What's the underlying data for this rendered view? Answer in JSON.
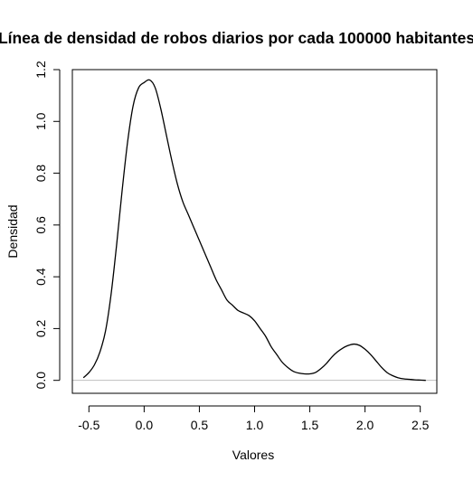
{
  "chart_data": {
    "type": "line",
    "title": "Línea de densidad de robos diarios por cada 100000 habitantes",
    "xlabel": "Valores",
    "ylabel": "Densidad",
    "xlim": [
      -0.65,
      2.65
    ],
    "ylim": [
      -0.05,
      1.2
    ],
    "x_ticks": [
      -0.5,
      0.0,
      0.5,
      1.0,
      1.5,
      2.0,
      2.5
    ],
    "x_tick_labels": [
      "-0.5",
      "0.0",
      "0.5",
      "1.0",
      "1.5",
      "2.0",
      "2.5"
    ],
    "y_ticks": [
      0.0,
      0.2,
      0.4,
      0.6,
      0.8,
      1.0,
      1.2
    ],
    "y_tick_labels": [
      "0.0",
      "0.2",
      "0.4",
      "0.6",
      "0.8",
      "1.0",
      "1.2"
    ],
    "grid": false,
    "baseline_y": 0,
    "colors": {
      "line": "#000000",
      "baseline": "#bebebe",
      "frame": "#000000"
    },
    "series": [
      {
        "x": [
          -0.55,
          -0.5,
          -0.45,
          -0.4,
          -0.35,
          -0.3,
          -0.25,
          -0.2,
          -0.15,
          -0.1,
          -0.05,
          0.0,
          0.05,
          0.1,
          0.15,
          0.2,
          0.25,
          0.3,
          0.35,
          0.4,
          0.45,
          0.5,
          0.55,
          0.6,
          0.65,
          0.7,
          0.75,
          0.8,
          0.85,
          0.9,
          0.95,
          1.0,
          1.05,
          1.1,
          1.15,
          1.2,
          1.25,
          1.3,
          1.35,
          1.4,
          1.45,
          1.5,
          1.55,
          1.6,
          1.65,
          1.7,
          1.75,
          1.8,
          1.85,
          1.9,
          1.95,
          2.0,
          2.05,
          2.1,
          2.15,
          2.2,
          2.25,
          2.3,
          2.35,
          2.4,
          2.45,
          2.5,
          2.55
        ],
        "y": [
          0.01,
          0.03,
          0.06,
          0.11,
          0.19,
          0.33,
          0.52,
          0.73,
          0.92,
          1.06,
          1.13,
          1.15,
          1.16,
          1.13,
          1.05,
          0.95,
          0.85,
          0.76,
          0.69,
          0.64,
          0.59,
          0.54,
          0.49,
          0.44,
          0.39,
          0.35,
          0.31,
          0.29,
          0.27,
          0.26,
          0.25,
          0.23,
          0.2,
          0.17,
          0.13,
          0.1,
          0.07,
          0.05,
          0.035,
          0.028,
          0.025,
          0.025,
          0.03,
          0.045,
          0.065,
          0.09,
          0.11,
          0.125,
          0.135,
          0.14,
          0.135,
          0.12,
          0.1,
          0.075,
          0.05,
          0.03,
          0.018,
          0.01,
          0.006,
          0.004,
          0.002,
          0.001,
          0.0
        ]
      }
    ]
  }
}
